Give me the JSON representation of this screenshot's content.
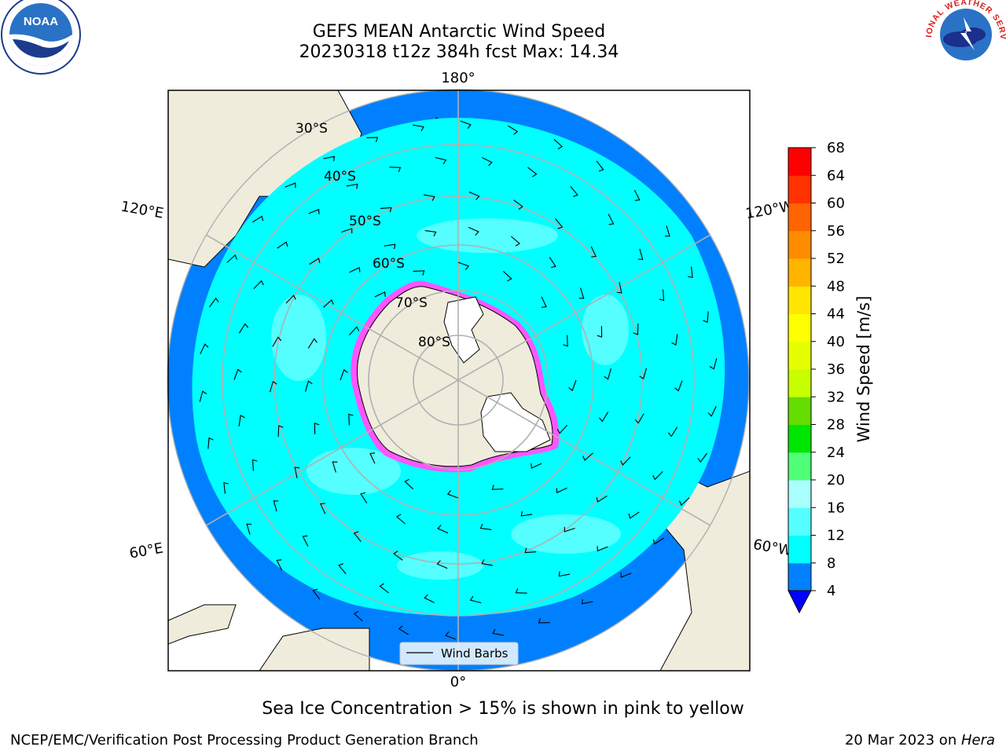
{
  "header": {
    "title": "GEFS MEAN Antarctic Wind Speed",
    "subtitle": "20230318 t12z 384h fcst   Max: 14.34"
  },
  "map": {
    "projection": "south-polar-stereographic",
    "lat_labels": [
      "30°S",
      "40°S",
      "50°S",
      "60°S",
      "70°S",
      "80°S"
    ],
    "lon_labels": {
      "top": "180°",
      "bottom": "0°",
      "upper_left": "120°E",
      "upper_right": "120°W",
      "lower_left": "60°E",
      "lower_right": "60°W"
    },
    "colors": {
      "land": "#efecdc",
      "outer_ring": "#0080ff",
      "inner_ocean": "#00ffff",
      "pale_patches": "#55ffff",
      "ice_edge": "#ff55ff",
      "grid": "#b0b0b0"
    },
    "legend_label": "Wind Barbs"
  },
  "colorbar": {
    "label": "Wind Speed [m/s]",
    "ticks": [
      "68",
      "64",
      "60",
      "56",
      "52",
      "48",
      "44",
      "40",
      "36",
      "32",
      "28",
      "24",
      "20",
      "16",
      "12",
      "8",
      "4"
    ],
    "colors": [
      "#0000ff",
      "#0080ff",
      "#00ffff",
      "#55ffff",
      "#aaffff",
      "#50ff78",
      "#00e600",
      "#64dc00",
      "#c8ff00",
      "#e6ff00",
      "#ffff00",
      "#ffe600",
      "#ffb400",
      "#ff8c00",
      "#ff6400",
      "#ff3200",
      "#ff0000"
    ]
  },
  "logos": {
    "left": "NOAA",
    "right": "NATIONAL WEATHER SERVICE"
  },
  "footer": {
    "note": "Sea Ice Concentration > 15% is shown in pink to yellow",
    "credit": "NCEP/EMC/Verification Post Processing Product Generation Branch",
    "date": "20 Mar 2023 on ",
    "machine": "Hera"
  }
}
